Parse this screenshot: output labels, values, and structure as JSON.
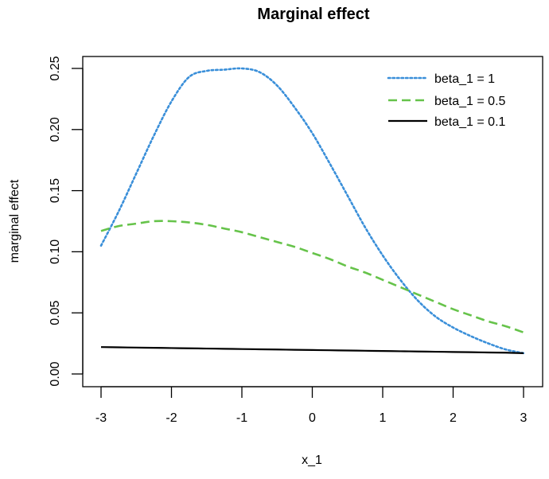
{
  "chart_data": {
    "type": "line",
    "title": "Marginal effect",
    "xlabel": "x_1",
    "ylabel": "marginal effect",
    "xlim": [
      -3,
      3
    ],
    "ylim": [
      0,
      0.25
    ],
    "x_ticks": [
      -3,
      -2,
      -1,
      0,
      1,
      2,
      3
    ],
    "y_ticks": [
      0.0,
      0.05,
      0.1,
      0.15,
      0.2,
      0.25
    ],
    "x_tick_labels": [
      "-3",
      "-2",
      "-1",
      "0",
      "1",
      "2",
      "3"
    ],
    "y_tick_labels": [
      "0.00",
      "0.05",
      "0.10",
      "0.15",
      "0.20",
      "0.25"
    ],
    "grid": false,
    "legend_position": "top-right",
    "x": [
      -3.0,
      -2.75,
      -2.5,
      -2.25,
      -2.0,
      -1.75,
      -1.5,
      -1.25,
      -1.0,
      -0.75,
      -0.5,
      -0.25,
      0.0,
      0.25,
      0.5,
      0.75,
      1.0,
      1.25,
      1.5,
      1.75,
      2.0,
      2.25,
      2.5,
      2.75,
      3.0
    ],
    "series": [
      {
        "name": "beta_1 = 1",
        "color": "#3a8fd9",
        "style": "dotted",
        "values": [
          0.105,
          0.133,
          0.164,
          0.195,
          0.223,
          0.243,
          0.248,
          0.249,
          0.25,
          0.247,
          0.236,
          0.218,
          0.197,
          0.172,
          0.146,
          0.12,
          0.097,
          0.077,
          0.06,
          0.047,
          0.038,
          0.031,
          0.025,
          0.02,
          0.017
        ]
      },
      {
        "name": "beta_1 = 0.5",
        "color": "#66c34a",
        "style": "dashed",
        "values": [
          0.117,
          0.121,
          0.123,
          0.125,
          0.125,
          0.124,
          0.122,
          0.119,
          0.116,
          0.112,
          0.108,
          0.104,
          0.099,
          0.094,
          0.088,
          0.083,
          0.077,
          0.071,
          0.065,
          0.059,
          0.053,
          0.048,
          0.043,
          0.039,
          0.034
        ]
      },
      {
        "name": "beta_1 = 0.1",
        "color": "#000000",
        "style": "solid",
        "values": [
          0.022,
          0.0218,
          0.0216,
          0.0214,
          0.0212,
          0.021,
          0.0208,
          0.0206,
          0.0204,
          0.0202,
          0.02,
          0.0198,
          0.0196,
          0.0194,
          0.0192,
          0.019,
          0.0188,
          0.0186,
          0.0184,
          0.0182,
          0.018,
          0.0178,
          0.0176,
          0.0174,
          0.017
        ]
      }
    ]
  }
}
